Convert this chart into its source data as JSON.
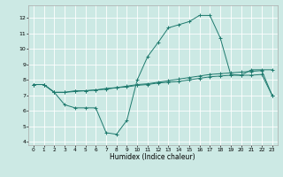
{
  "title": "",
  "xlabel": "Humidex (Indice chaleur)",
  "xlim": [
    -0.5,
    23.5
  ],
  "ylim": [
    3.8,
    12.8
  ],
  "yticks": [
    4,
    5,
    6,
    7,
    8,
    9,
    10,
    11,
    12
  ],
  "xticks": [
    0,
    1,
    2,
    3,
    4,
    5,
    6,
    7,
    8,
    9,
    10,
    11,
    12,
    13,
    14,
    15,
    16,
    17,
    18,
    19,
    20,
    21,
    22,
    23
  ],
  "bg_color": "#cce9e4",
  "grid_color": "#ffffff",
  "line_color": "#1e7a6e",
  "line1_x": [
    0,
    1,
    2,
    3,
    4,
    5,
    6,
    7,
    8,
    9,
    10,
    11,
    12,
    13,
    14,
    15,
    16,
    17,
    18,
    19,
    20,
    21,
    22,
    23
  ],
  "line1_y": [
    7.7,
    7.7,
    7.2,
    7.2,
    7.3,
    7.3,
    7.35,
    7.4,
    7.5,
    7.55,
    7.65,
    7.7,
    7.8,
    7.85,
    7.9,
    8.0,
    8.1,
    8.2,
    8.25,
    8.3,
    8.3,
    8.3,
    8.35,
    7.0
  ],
  "line2_x": [
    0,
    1,
    2,
    3,
    4,
    5,
    6,
    7,
    8,
    9,
    10,
    11,
    12,
    13,
    14,
    15,
    16,
    17,
    18,
    19,
    20,
    21,
    22,
    23
  ],
  "line2_y": [
    7.7,
    7.7,
    7.2,
    7.2,
    7.25,
    7.3,
    7.35,
    7.45,
    7.5,
    7.6,
    7.7,
    7.75,
    7.85,
    7.95,
    8.05,
    8.15,
    8.25,
    8.35,
    8.4,
    8.45,
    8.5,
    8.55,
    8.6,
    7.0
  ],
  "line3_x": [
    0,
    1,
    2,
    3,
    4,
    5,
    6,
    7,
    8,
    9,
    10,
    11,
    12,
    13,
    14,
    15,
    16,
    17,
    18,
    19,
    20,
    21,
    22,
    23
  ],
  "line3_y": [
    7.7,
    7.7,
    7.2,
    6.4,
    6.2,
    6.2,
    6.2,
    4.6,
    4.5,
    5.4,
    8.0,
    9.5,
    10.4,
    11.35,
    11.55,
    11.75,
    12.15,
    12.15,
    10.7,
    8.35,
    8.3,
    8.65,
    8.65,
    8.65
  ]
}
